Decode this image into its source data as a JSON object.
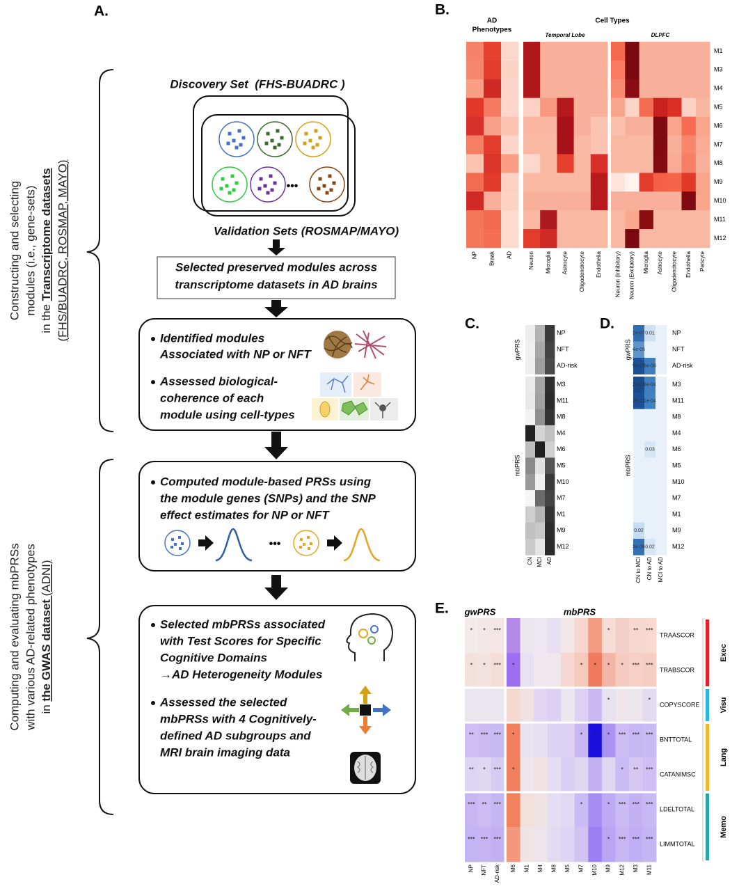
{
  "panel_a": {
    "label": "A.",
    "side_top": [
      "Constructing and selecting",
      "modules (i.e., gene-sets)",
      [
        "in the ",
        "Transcriptome datasets"
      ],
      "(FHS/BUADRC, ROSMAP, MAYO)"
    ],
    "side_bottom": [
      "Computing and evaluating mbPRSs",
      "with various AD-related phenotypes",
      [
        "in ",
        "the GWAS dataset",
        " (ADNI)"
      ]
    ],
    "discovery": "Discovery Set  (FHS-BUADRC )",
    "validation": "Validation Sets (ROSMAP/MAYO)",
    "box1": [
      "Selected preserved modules across",
      "transcriptome datasets in AD brains"
    ],
    "box2": [
      [
        "Identified modules",
        "Associated with NP or NFT"
      ],
      [
        "Assessed biological-",
        "coherence of each",
        "module using cell-types"
      ]
    ],
    "box3": [
      "Computed module-based PRSs using",
      "the module genes (SNPs) and the SNP",
      "effect estimates for NP or NFT"
    ],
    "box4": [
      [
        "Selected mbPRSs associated",
        "with Test Scores for Specific",
        "Cognitive Domains",
        "→AD Heterogeneity Modules"
      ],
      [
        "Assessed the selected",
        "mbPRSs with 4 Cognitively-",
        "defined AD subgroups and",
        "MRI brain imaging data"
      ]
    ]
  },
  "panel_b": {
    "label": "B.",
    "ad_header": [
      "AD",
      "Phenotypes"
    ],
    "cell_header": "Cell Types",
    "regions": [
      "Temporal Lobe",
      "DLPFC"
    ],
    "columns": [
      "NP",
      "Braak",
      "AD",
      "Neuron",
      "Microglia",
      "Astrocyte",
      "Oligodendrocyte",
      "Endothelia",
      "Neuron (Inhibitory)",
      "Neuron (Excitatory)",
      "Microglia",
      "Astrocyte",
      "Oligodendrocyte",
      "Endothelia",
      "Pericyte"
    ],
    "rows": [
      "M1",
      "M3",
      "M4",
      "M5",
      "M6",
      "M7",
      "M8",
      "M9",
      "M10",
      "M11",
      "M12"
    ],
    "colors": [
      [
        "#f7826a",
        "#e8412f",
        "#fcd8cc",
        "#b0171b",
        "#f9b09a",
        "#f9b09a",
        "#f9b09a",
        "#f9b09a",
        "#f5694f",
        "#7a0a10",
        "#f9b09a",
        "#f9b09a",
        "#f9b09a",
        "#f9b09a",
        "#f9b09a"
      ],
      [
        "#f7866d",
        "#e33c2c",
        "#fcd2c4",
        "#b0171b",
        "#f9b09a",
        "#f9b09a",
        "#f9b09a",
        "#f9b09a",
        "#f87a60",
        "#7a0a10",
        "#f9b09a",
        "#f9b09a",
        "#f9b09a",
        "#f9b09a",
        "#f9b09a"
      ],
      [
        "#fa9e85",
        "#cd2a24",
        "#fcd5c8",
        "#b0171b",
        "#f9b09a",
        "#f9b09a",
        "#f9b09a",
        "#f9b09a",
        "#f88a70",
        "#8a0d12",
        "#f9b09a",
        "#f9b09a",
        "#f9b09a",
        "#f9b09a",
        "#f9b09a"
      ],
      [
        "#e3392b",
        "#f57a62",
        "#fcd6ca",
        "#fcd0c2",
        "#f7997f",
        "#b5191d",
        "#f9b09a",
        "#f9b09a",
        "#f9a58d",
        "#fcd4c6",
        "#f36c52",
        "#c9221f",
        "#db2e24",
        "#fcd2c4",
        "#f9b7a2"
      ],
      [
        "#d8302a",
        "#f9a088",
        "#fbc4b2",
        "#f9b59f",
        "#f9b59f",
        "#a8121a",
        "#f9b09a",
        "#fbc4b2",
        "#fbc0ad",
        "#f9b09a",
        "#f9b09a",
        "#800a12",
        "#f9a58c",
        "#f56c52",
        "#f9a58c"
      ],
      [
        "#f57e64",
        "#e33c2c",
        "#fcd5c8",
        "#f9b8a2",
        "#f9b8a2",
        "#a81219",
        "#f9b8a2",
        "#fbc4b2",
        "#f9b8a2",
        "#f9b8a2",
        "#f9b8a2",
        "#800a12",
        "#f9b09a",
        "#f7866b",
        "#f9ab93"
      ],
      [
        "#fcc3b0",
        "#db3429",
        "#fa9e86",
        "#fcd8cc",
        "#f9b8a2",
        "#e5402e",
        "#f9b8a2",
        "#d92d27",
        "#f9b8a2",
        "#f9b8a2",
        "#f9b8a2",
        "#850b12",
        "#f9ab93",
        "#f57e64",
        "#f9b09a"
      ],
      [
        "#f36c52",
        "#e23a2c",
        "#fcd0c2",
        "#f9b8a2",
        "#f9b8a2",
        "#f9b8a2",
        "#f9b8a2",
        "#b8191d",
        "#fde5dc",
        "#fef3ee",
        "#e53d2d",
        "#f36045",
        "#f4654a",
        "#e13a2b",
        "#f9a58c"
      ],
      [
        "#cf2a25",
        "#f9b09a",
        "#fcd2c4",
        "#f9b09a",
        "#f9b09a",
        "#f9b09a",
        "#f9b09a",
        "#b8191d",
        "#f9b09a",
        "#f9b09a",
        "#f9b09a",
        "#f9b09a",
        "#f9b09a",
        "#800a12",
        "#f9a58c"
      ],
      [
        "#f5755a",
        "#f36a50",
        "#fcdace",
        "#f9b8a2",
        "#ad1a1d",
        "#f9b8a2",
        "#f9b8a2",
        "#f9b8a2",
        "#f9b8a2",
        "#f9a990",
        "#8a0d12",
        "#f9b8a2",
        "#f9b8a2",
        "#f9b8a2",
        "#f9b8a2"
      ],
      [
        "#f6765c",
        "#f56d53",
        "#fcdace",
        "#e33c2c",
        "#cf2a25",
        "#f9b8a2",
        "#f9b8a2",
        "#f9b8a2",
        "#f9b8a2",
        "#7a0a10",
        "#f9b8a2",
        "#f9b8a2",
        "#f9b8a2",
        "#f9b8a2",
        "#f9b8a2"
      ]
    ]
  },
  "panel_c": {
    "label": "C.",
    "groups": [
      "gwPRS",
      "mbPRS"
    ],
    "rows": [
      "NP",
      "NFT",
      "AD-risk",
      "M3",
      "M11",
      "M8",
      "M4",
      "M6",
      "M5",
      "M10",
      "M7",
      "M1",
      "M9",
      "M12"
    ],
    "columns": [
      "CN",
      "MCI",
      "AD"
    ],
    "colors": [
      [
        "#ededed",
        "#b3b3b3",
        "#3a3a3a"
      ],
      [
        "#f0f0f0",
        "#a8a8a8",
        "#424242"
      ],
      [
        "#eeeeee",
        "#9e9e9e",
        "#4a4a4a"
      ],
      [
        "#eaeaea",
        "#a5a5a5",
        "#2e2e2e"
      ],
      [
        "#e8e8e8",
        "#a0a0a0",
        "#2a2a2a"
      ],
      [
        "#f2f2f2",
        "#8f8f8f",
        "#333333"
      ],
      [
        "#222222",
        "#d4d4d4",
        "#c0c0c0"
      ],
      [
        "#bdbdbd",
        "#1f1f1f",
        "#d0d0d0"
      ],
      [
        "#8a8a8a",
        "#e0e0e0",
        "#555555"
      ],
      [
        "#9a9a9a",
        "#f0f0f0",
        "#3a3a3a"
      ],
      [
        "#f5f5f5",
        "#6a6a6a",
        "#444444"
      ],
      [
        "#cfcfcf",
        "#b5b5b5",
        "#333333"
      ],
      [
        "#c0c0c0",
        "#c8c8c8",
        "#2c2c2c"
      ],
      [
        "#cacaca",
        "#e5e5e5",
        "#2a2a2a"
      ]
    ]
  },
  "panel_d": {
    "label": "D.",
    "groups": [
      "gwPRS",
      "mbPRS"
    ],
    "rows": [
      "NP",
      "NFT",
      "AD-risk",
      "M3",
      "M11",
      "M8",
      "M4",
      "M6",
      "M5",
      "M10",
      "M7",
      "M1",
      "M9",
      "M12"
    ],
    "columns": [
      "CN to MCI",
      "CN to AD",
      "MCI to AD"
    ],
    "colors": [
      [
        "#2f6db0",
        "#cfe0f2",
        "#e8f0fa"
      ],
      [
        "#5f95cb",
        "#e8f0fa",
        "#e8f0fa"
      ],
      [
        "#1c4f93",
        "#3d7fc0",
        "#e8f0fa"
      ],
      [
        "#1a4a8e",
        "#3d7fc0",
        "#e8f0fa"
      ],
      [
        "#1c4f93",
        "#3f80c0",
        "#e8f0fa"
      ],
      [
        "#e8f0fa",
        "#e8f0fa",
        "#e8f0fa"
      ],
      [
        "#e8f0fa",
        "#e8f0fa",
        "#e8f0fa"
      ],
      [
        "#e8f0fa",
        "#d7e6f4",
        "#e8f0fa"
      ],
      [
        "#e8f0fa",
        "#e8f0fa",
        "#e8f0fa"
      ],
      [
        "#e8f0fa",
        "#e8f0fa",
        "#e8f0fa"
      ],
      [
        "#e8f0fa",
        "#e8f0fa",
        "#e8f0fa"
      ],
      [
        "#e8f0fa",
        "#e8f0fa",
        "#e8f0fa"
      ],
      [
        "#c6dcf0",
        "#e8f0fa",
        "#e8f0fa"
      ],
      [
        "#3570b3",
        "#d7e6f4",
        "#e8f0fa"
      ]
    ],
    "labels": [
      [
        "2e-07",
        "0.01",
        null
      ],
      [
        "4e-05",
        null,
        null
      ],
      [
        "9e-20",
        "6e-08",
        null
      ],
      [
        "2e-18",
        "3e-04",
        null
      ],
      [
        "2e-11",
        "1e-04",
        null
      ],
      [
        null,
        null,
        null
      ],
      [
        null,
        null,
        null
      ],
      [
        null,
        "0.03",
        null
      ],
      [
        null,
        null,
        null
      ],
      [
        null,
        null,
        null
      ],
      [
        null,
        null,
        null
      ],
      [
        null,
        null,
        null
      ],
      [
        "0.02",
        null,
        null
      ],
      [
        "3e-06",
        "0.02",
        null
      ]
    ]
  },
  "panel_e": {
    "label": "E.",
    "headers": [
      "gwPRS",
      "mbPRS"
    ],
    "columns": [
      "NP",
      "NFT",
      "AD-risk",
      "M6",
      "M1",
      "M4",
      "M8",
      "M5",
      "M7",
      "M10",
      "M9",
      "M12",
      "M3",
      "M11"
    ],
    "rows": [
      "TRAASCOR",
      "TRABSCOR",
      "COPYSCORE",
      "BNTTOTAL",
      "CATANIMSC",
      "LDELTOTAL",
      "LIMMTOTAL"
    ],
    "domains": [
      "Exec",
      "Visu",
      "Lang",
      "Memo"
    ],
    "domain_colors": [
      "#e0202a",
      "#29b6e6",
      "#f5b82a",
      "#2aa5a8"
    ],
    "colors": [
      [
        "#f3eaea",
        "#f2e8e8",
        "#f3e6e4",
        "#b58ae8",
        "#ece6f0",
        "#ede8ef",
        "#e6dff2",
        "#f2e6e6",
        "#f6d6cf",
        "#f49a7f",
        "#f5dcd5",
        "#f2cfc8",
        "#f6d8d1",
        "#f8d8cf"
      ],
      [
        "#f3e1de",
        "#f3e3e0",
        "#f4dcd7",
        "#9e6ef0",
        "#e8e1f3",
        "#efe9ef",
        "#eee8ee",
        "#f6d8d0",
        "#f5c9bc",
        "#f07a5d",
        "#f3b5a5",
        "#f6cbbf",
        "#f7d0c5",
        "#f6cdc1"
      ],
      [
        "#ebe6ee",
        "#ece7ee",
        "#eae5ef",
        "#f5d8d0",
        "#f0e2e2",
        "#e0d6f3",
        "#dcd0f3",
        "#ebe7ee",
        "#ddd2f3",
        "#c9b9f3",
        "#e8e2f0",
        "#efe6ea",
        "#ede6ec",
        "#e3dbf1"
      ],
      [
        "#cdbff3",
        "#cabbf3",
        "#c8baf3",
        "#f2805f",
        "#e9e3f0",
        "#e6dff2",
        "#dcd2f4",
        "#dcd2f4",
        "#c6b7f4",
        "#1a10e0",
        "#a993f3",
        "#cbbdf3",
        "#c5b6f4",
        "#c8baf3"
      ],
      [
        "#ddd4f2",
        "#e0d8f2",
        "#d6cbf3",
        "#f07f5e",
        "#eee6ec",
        "#f1e3e3",
        "#e5ddf1",
        "#d9cff4",
        "#e0d7f2",
        "#c1b0f4",
        "#dfd6f2",
        "#c9bbf3",
        "#d4c8f3",
        "#cdbff3"
      ],
      [
        "#c6b7f3",
        "#cbbdf3",
        "#c4b5f3",
        "#f1845f",
        "#f3e0dd",
        "#f0e3e3",
        "#e5ddf2",
        "#e1d9f2",
        "#c9bbf3",
        "#a58ef3",
        "#bcaaf4",
        "#c9bbf3",
        "#c2b2f3",
        "#c7b9f3"
      ],
      [
        "#c3b4f3",
        "#c5b6f3",
        "#c1b1f3",
        "#f3987a",
        "#f0e3e3",
        "#eee5ec",
        "#e3dbf2",
        "#ddd3f3",
        "#d0c4f3",
        "#9a80f2",
        "#b8a5f4",
        "#c6b7f3",
        "#bfaff4",
        "#c4b5f3"
      ]
    ],
    "stars": [
      [
        "*",
        "*",
        "***",
        null,
        null,
        null,
        null,
        null,
        null,
        null,
        "*",
        null,
        "**",
        "***"
      ],
      [
        "*",
        "*",
        "***",
        "*",
        null,
        null,
        null,
        null,
        "*",
        "*",
        "*",
        "*",
        "***",
        "***"
      ],
      [
        null,
        null,
        null,
        null,
        null,
        null,
        null,
        null,
        null,
        null,
        "*",
        null,
        null,
        "*"
      ],
      [
        "**",
        "***",
        "***",
        "*",
        null,
        null,
        null,
        null,
        "*",
        "*",
        "*",
        "***",
        "***",
        "***"
      ],
      [
        "**",
        "*",
        "***",
        "*",
        null,
        null,
        null,
        null,
        null,
        null,
        null,
        "*",
        "**",
        "***"
      ],
      [
        "***",
        "**",
        "***",
        null,
        null,
        null,
        null,
        null,
        "*",
        null,
        "*",
        "***",
        "***",
        "***"
      ],
      [
        "***",
        "***",
        "***",
        null,
        null,
        null,
        null,
        null,
        null,
        null,
        "*",
        "***",
        "***",
        "***"
      ]
    ]
  }
}
